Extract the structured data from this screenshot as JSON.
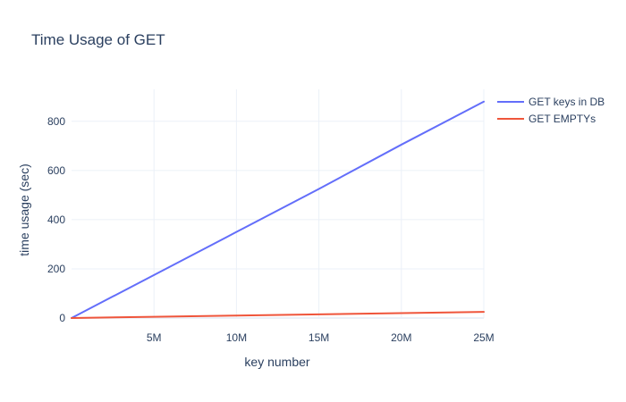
{
  "chart_data": {
    "type": "line",
    "title": "Time Usage of GET",
    "xlabel": "key number",
    "ylabel": "time usage (sec)",
    "xlim": [
      0,
      25000000
    ],
    "ylim": [
      0,
      930
    ],
    "xticks": [
      {
        "value": 5000000,
        "label": "5M"
      },
      {
        "value": 10000000,
        "label": "10M"
      },
      {
        "value": 15000000,
        "label": "15M"
      },
      {
        "value": 20000000,
        "label": "20M"
      },
      {
        "value": 25000000,
        "label": "25M"
      }
    ],
    "yticks": [
      {
        "value": 0,
        "label": "0"
      },
      {
        "value": 200,
        "label": "200"
      },
      {
        "value": 400,
        "label": "400"
      },
      {
        "value": 600,
        "label": "600"
      },
      {
        "value": 800,
        "label": "800"
      }
    ],
    "grid": true,
    "legend_position": "top-right",
    "series": [
      {
        "name": "GET keys in DB",
        "color": "#636efa",
        "x": [
          0,
          5000000,
          10000000,
          15000000,
          20000000,
          25000000
        ],
        "y": [
          0,
          175,
          350,
          525,
          705,
          880
        ]
      },
      {
        "name": "GET EMPTYs",
        "color": "#ef553b",
        "x": [
          0,
          5000000,
          10000000,
          15000000,
          20000000,
          25000000
        ],
        "y": [
          0,
          5,
          10,
          15,
          20,
          25
        ]
      }
    ]
  }
}
